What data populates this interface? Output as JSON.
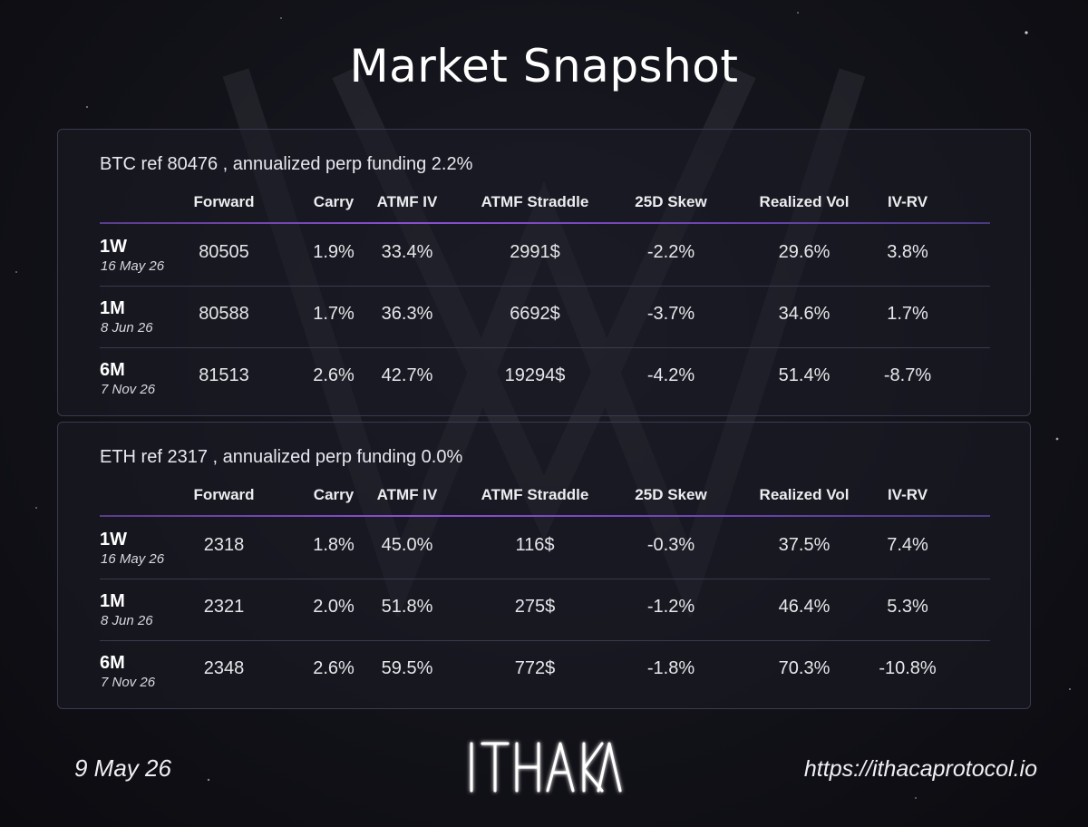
{
  "title": "Market Snapshot",
  "columns": [
    "Forward",
    "Carry",
    "ATMF IV",
    "ATMF Straddle",
    "25D Skew",
    "Realized Vol",
    "IV-RV"
  ],
  "panels": [
    {
      "heading": "BTC ref 80476 , annualized perp funding 2.2%",
      "rows": [
        {
          "tenor": "1W",
          "date": "16 May 26",
          "cells": [
            "80505",
            "1.9%",
            "33.4%",
            "2991$",
            "-2.2%",
            "29.6%",
            "3.8%"
          ]
        },
        {
          "tenor": "1M",
          "date": "8 Jun 26",
          "cells": [
            "80588",
            "1.7%",
            "36.3%",
            "6692$",
            "-3.7%",
            "34.6%",
            "1.7%"
          ]
        },
        {
          "tenor": "6M",
          "date": "7 Nov 26",
          "cells": [
            "81513",
            "2.6%",
            "42.7%",
            "19294$",
            "-4.2%",
            "51.4%",
            "-8.7%"
          ]
        }
      ]
    },
    {
      "heading": "ETH ref 2317 , annualized perp funding 0.0%",
      "rows": [
        {
          "tenor": "1W",
          "date": "16 May 26",
          "cells": [
            "2318",
            "1.8%",
            "45.0%",
            "116$",
            "-0.3%",
            "37.5%",
            "7.4%"
          ]
        },
        {
          "tenor": "1M",
          "date": "8 Jun 26",
          "cells": [
            "2321",
            "2.0%",
            "51.8%",
            "275$",
            "-1.2%",
            "46.4%",
            "5.3%"
          ]
        },
        {
          "tenor": "6M",
          "date": "7 Nov 26",
          "cells": [
            "2348",
            "2.6%",
            "59.5%",
            "772$",
            "-1.8%",
            "70.3%",
            "-10.8%"
          ]
        }
      ]
    }
  ],
  "footer": {
    "date": "9 May 26",
    "brand": "ITHACA",
    "url": "https://ithacaprotocol.io"
  }
}
